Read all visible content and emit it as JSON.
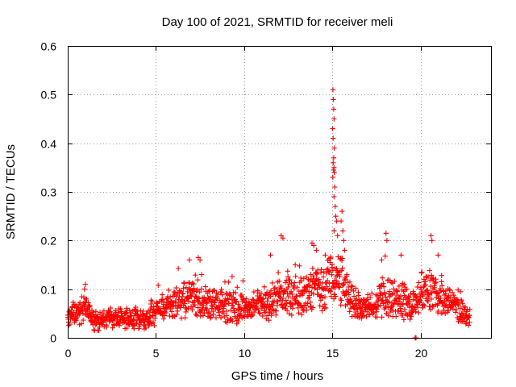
{
  "chart_data": {
    "type": "scatter",
    "title": "Day 100 of 2021, SRMTID for receiver meli",
    "xlabel": "GPS time / hours",
    "ylabel": "SRMTID / TECUs",
    "xlim": [
      0,
      24
    ],
    "ylim": [
      0,
      0.6
    ],
    "xticks": [
      0,
      5,
      10,
      15,
      20
    ],
    "xtick_labels": [
      "0",
      "5",
      "10",
      "15",
      "20"
    ],
    "yticks": [
      0,
      0.1,
      0.2,
      0.3,
      0.4,
      0.5,
      0.6
    ],
    "ytick_labels": [
      "0",
      "0.1",
      "0.2",
      "0.3",
      "0.4",
      "0.5",
      "0.6"
    ],
    "grid": true,
    "marker": "+",
    "color": "#ff0000",
    "series": [
      {
        "name": "SRMTID",
        "envelope": [
          [
            0.0,
            0.045,
            0.022
          ],
          [
            0.5,
            0.05,
            0.022
          ],
          [
            1.0,
            0.065,
            0.03
          ],
          [
            1.5,
            0.035,
            0.02
          ],
          [
            2.0,
            0.035,
            0.02
          ],
          [
            2.5,
            0.04,
            0.02
          ],
          [
            3.0,
            0.04,
            0.02
          ],
          [
            3.5,
            0.038,
            0.02
          ],
          [
            4.0,
            0.035,
            0.02
          ],
          [
            4.5,
            0.04,
            0.02
          ],
          [
            5.0,
            0.055,
            0.025
          ],
          [
            5.5,
            0.065,
            0.028
          ],
          [
            6.0,
            0.07,
            0.03
          ],
          [
            6.5,
            0.075,
            0.035
          ],
          [
            7.0,
            0.085,
            0.04
          ],
          [
            7.5,
            0.08,
            0.035
          ],
          [
            8.0,
            0.07,
            0.03
          ],
          [
            8.5,
            0.065,
            0.03
          ],
          [
            9.0,
            0.065,
            0.03
          ],
          [
            9.5,
            0.06,
            0.03
          ],
          [
            10.0,
            0.06,
            0.03
          ],
          [
            10.5,
            0.065,
            0.03
          ],
          [
            11.0,
            0.065,
            0.03
          ],
          [
            11.5,
            0.075,
            0.035
          ],
          [
            12.0,
            0.09,
            0.045
          ],
          [
            12.5,
            0.095,
            0.04
          ],
          [
            13.0,
            0.085,
            0.04
          ],
          [
            13.5,
            0.09,
            0.04
          ],
          [
            14.0,
            0.11,
            0.05
          ],
          [
            14.5,
            0.095,
            0.045
          ],
          [
            15.0,
            0.12,
            0.05
          ],
          [
            15.5,
            0.12,
            0.05
          ],
          [
            16.0,
            0.08,
            0.035
          ],
          [
            16.5,
            0.065,
            0.03
          ],
          [
            17.0,
            0.06,
            0.028
          ],
          [
            17.5,
            0.07,
            0.03
          ],
          [
            18.0,
            0.085,
            0.04
          ],
          [
            18.5,
            0.08,
            0.035
          ],
          [
            19.0,
            0.075,
            0.035
          ],
          [
            19.5,
            0.065,
            0.03
          ],
          [
            20.0,
            0.09,
            0.04
          ],
          [
            20.5,
            0.1,
            0.045
          ],
          [
            21.0,
            0.085,
            0.035
          ],
          [
            21.5,
            0.08,
            0.03
          ],
          [
            22.0,
            0.065,
            0.03
          ],
          [
            22.5,
            0.045,
            0.02
          ],
          [
            22.8,
            0.045,
            0.02
          ]
        ],
        "peaks": [
          [
            15.04,
            0.51
          ],
          [
            15.06,
            0.49
          ],
          [
            15.08,
            0.47
          ],
          [
            15.1,
            0.45
          ],
          [
            15.02,
            0.43
          ],
          [
            15.05,
            0.41
          ],
          [
            15.11,
            0.39
          ],
          [
            15.08,
            0.37
          ],
          [
            15.05,
            0.36
          ],
          [
            15.1,
            0.35
          ],
          [
            15.12,
            0.34
          ],
          [
            15.07,
            0.345
          ],
          [
            15.03,
            0.33
          ],
          [
            15.14,
            0.31
          ],
          [
            15.1,
            0.29
          ],
          [
            15.17,
            0.27
          ],
          [
            15.2,
            0.25
          ],
          [
            15.25,
            0.24
          ],
          [
            15.1,
            0.22
          ],
          [
            15.3,
            0.21
          ],
          [
            15.55,
            0.26
          ],
          [
            15.5,
            0.24
          ],
          [
            15.6,
            0.22
          ],
          [
            15.65,
            0.2
          ],
          [
            15.7,
            0.18
          ],
          [
            12.1,
            0.21
          ],
          [
            12.2,
            0.205
          ],
          [
            13.85,
            0.195
          ],
          [
            13.95,
            0.19
          ],
          [
            14.1,
            0.18
          ],
          [
            18.05,
            0.215
          ],
          [
            18.1,
            0.2
          ],
          [
            20.6,
            0.21
          ],
          [
            20.65,
            0.2
          ],
          [
            7.4,
            0.165
          ],
          [
            7.5,
            0.16
          ],
          [
            6.9,
            0.16
          ],
          [
            11.5,
            0.17
          ],
          [
            12.9,
            0.15
          ],
          [
            14.6,
            0.17
          ],
          [
            17.8,
            0.16
          ],
          [
            18.9,
            0.17
          ],
          [
            21.0,
            0.17
          ],
          [
            1.0,
            0.11
          ],
          [
            0.95,
            0.1
          ],
          [
            19.7,
            0.0
          ],
          [
            19.75,
            0.0
          ]
        ]
      }
    ]
  }
}
